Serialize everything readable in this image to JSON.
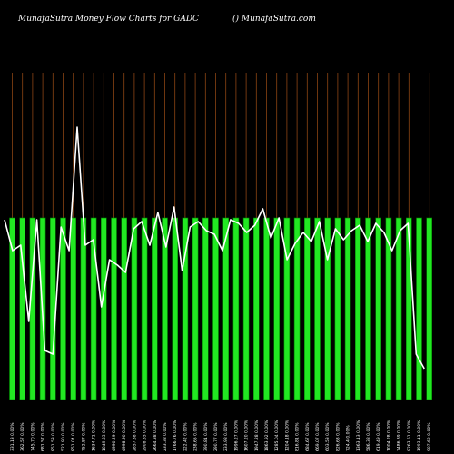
{
  "header": {
    "title": "MunafaSutra  Money Flow  Charts for GADC",
    "credit": "() MunafaSutra.com"
  },
  "colors": {
    "background": "#000000",
    "bar_fill": "#22e822",
    "bar_edge": "#008000",
    "vertical_line": "#8b4513",
    "price_line": "#ffffff",
    "text": "#ffffff"
  },
  "chart_data": {
    "type": "bar",
    "title": "MunafaSutra  Money Flow  Charts for GADC",
    "bars_all_equal_height": true,
    "categories": [
      "331.13 0.00%",
      "362.57 0.00%",
      "745.70 0.00%",
      "681.57 0.00%",
      "851.53 0.00%",
      "521.90 0.00%",
      "851.04 0.00%",
      "752.87 0.00%",
      "1634.71 0.00%",
      "1049.33 0.00%",
      "4990.29 0.00%",
      "4998.90 0.00%",
      "2857.38 0.00%",
      "2908.35 0.00%",
      "2664.38 0.00%",
      "233.38 0.00%",
      "1766.76 0.00%",
      "222.42 0.00%",
      "238.65 0.00%",
      "390.81 0.00%",
      "290.77 0.00%",
      "233.98 0.00%",
      "1996.27 0.00%",
      "1607.20 0.00%",
      "1947.28 0.00%",
      "1863.92 0.00%",
      "1285.04 0.00%",
      "1204.18 0.00%",
      "816.81 0.00%",
      "684.67 0.00%",
      "669.07 0.00%",
      "603.53 0.00%",
      "826.63 0.00%",
      "724.4 0.00%",
      "1363.13 0.00%",
      "586.38 0.00%",
      "619.49 0.00%",
      "1004.28 0.00%",
      "7486.39 0.00%",
      "9263.51 0.00%",
      "1993.11 0.00%",
      "907.62 0.00%"
    ],
    "values": [
      1,
      1,
      1,
      1,
      1,
      1,
      1,
      1,
      1,
      1,
      1,
      1,
      1,
      1,
      1,
      1,
      1,
      1,
      1,
      1,
      1,
      1,
      1,
      1,
      1,
      1,
      1,
      1,
      1,
      1,
      1,
      1,
      1,
      1,
      1,
      1,
      1,
      1,
      1,
      1,
      1,
      1
    ],
    "price_series": [
      0.99,
      0.82,
      0.85,
      0.43,
      0.99,
      0.27,
      0.25,
      0.95,
      0.82,
      1.5,
      0.85,
      0.88,
      0.51,
      0.77,
      0.74,
      0.7,
      0.94,
      0.98,
      0.85,
      1.03,
      0.84,
      1.06,
      0.71,
      0.95,
      0.98,
      0.93,
      0.91,
      0.82,
      0.99,
      0.97,
      0.92,
      0.96,
      1.05,
      0.89,
      1.0,
      0.77,
      0.86,
      0.92,
      0.87,
      0.98,
      0.77,
      0.94,
      0.88,
      0.93,
      0.96,
      0.87,
      0.97,
      0.92,
      0.82,
      0.93,
      0.97,
      0.25,
      0.17
    ],
    "price_points_per_bar": 1.26,
    "grid": false,
    "legend": "none"
  }
}
